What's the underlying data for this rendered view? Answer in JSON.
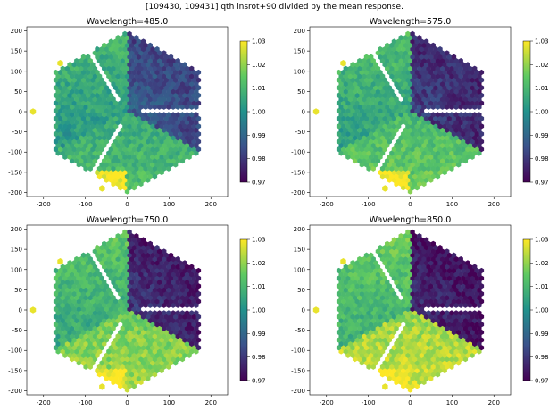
{
  "figure": {
    "title": "[109430, 109431] qth insrot+90 divided by the mean response."
  },
  "colormap": {
    "name": "viridis",
    "stops": [
      "#440154",
      "#3b528b",
      "#21918c",
      "#5ec962",
      "#fde725"
    ]
  },
  "chart_data": [
    {
      "type": "heatmap",
      "title": "Wavelength=485.0",
      "x_ticks": [
        -200,
        -100,
        0,
        100,
        200
      ],
      "y_ticks": [
        200,
        150,
        100,
        50,
        0,
        -50,
        -100,
        -150,
        -200
      ],
      "xlim": [
        -240,
        240
      ],
      "ylim": [
        -210,
        210
      ],
      "colorbar": {
        "range": [
          0.97,
          1.03
        ],
        "ticks": [
          "1.03",
          "1.02",
          "1.01",
          "1.00",
          "0.99",
          "0.98",
          "0.97"
        ]
      },
      "region_values": {
        "upper_right": 0.988,
        "left": 1.004,
        "bottom": 1.006,
        "bottom_strip": 1.03,
        "highlight_spots": 1.028
      }
    },
    {
      "type": "heatmap",
      "title": "Wavelength=575.0",
      "x_ticks": [
        -200,
        -100,
        0,
        100,
        200
      ],
      "y_ticks": [
        200,
        150,
        100,
        50,
        0,
        -50,
        -100,
        -150,
        -200
      ],
      "xlim": [
        -240,
        240
      ],
      "ylim": [
        -210,
        210
      ],
      "colorbar": {
        "range": [
          0.97,
          1.03
        ],
        "ticks": [
          "1.03",
          "1.02",
          "1.01",
          "1.00",
          "0.99",
          "0.98",
          "0.97"
        ]
      },
      "region_values": {
        "upper_right": 0.982,
        "left": 1.006,
        "bottom": 1.01,
        "bottom_strip": 1.03,
        "highlight_spots": 1.028
      }
    },
    {
      "type": "heatmap",
      "title": "Wavelength=750.0",
      "x_ticks": [
        -200,
        -100,
        0,
        100,
        200
      ],
      "y_ticks": [
        200,
        150,
        100,
        50,
        0,
        -50,
        -100,
        -150,
        -200
      ],
      "xlim": [
        -240,
        240
      ],
      "ylim": [
        -210,
        210
      ],
      "colorbar": {
        "range": [
          0.97,
          1.03
        ],
        "ticks": [
          "1.03",
          "1.02",
          "1.01",
          "1.00",
          "0.99",
          "0.98",
          "0.97"
        ]
      },
      "region_values": {
        "upper_right": 0.98,
        "left": 1.008,
        "bottom": 1.016,
        "bottom_strip": 1.03,
        "highlight_spots": 1.028
      }
    },
    {
      "type": "heatmap",
      "title": "Wavelength=850.0",
      "x_ticks": [
        -200,
        -100,
        0,
        100,
        200
      ],
      "y_ticks": [
        200,
        150,
        100,
        50,
        0,
        -50,
        -100,
        -150,
        -200
      ],
      "xlim": [
        -240,
        240
      ],
      "ylim": [
        -210,
        210
      ],
      "colorbar": {
        "range": [
          0.97,
          1.03
        ],
        "ticks": [
          "1.03",
          "1.02",
          "1.01",
          "1.00",
          "0.99",
          "0.98",
          "0.97"
        ]
      },
      "region_values": {
        "upper_right": 0.978,
        "left": 1.01,
        "bottom": 1.02,
        "bottom_strip": 1.03,
        "highlight_spots": 1.028
      }
    }
  ]
}
